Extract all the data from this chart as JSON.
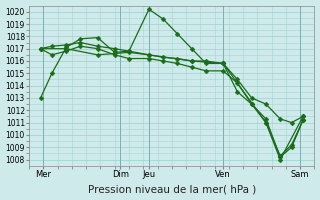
{
  "bg_color": "#ceeaea",
  "grid_color": "#a8d4d4",
  "line_color": "#1a6b1a",
  "marker": "D",
  "markersize": 2.5,
  "linewidth": 0.9,
  "xlabel": "Pression niveau de la mer( hPa )",
  "xlabel_fontsize": 7.5,
  "ylim": [
    1007.5,
    1020.5
  ],
  "yticks": [
    1008,
    1009,
    1010,
    1011,
    1012,
    1013,
    1014,
    1015,
    1016,
    1017,
    1018,
    1019,
    1020
  ],
  "ytick_fontsize": 5.5,
  "xtick_fontsize": 6.0,
  "xtick_labels": [
    "Mer",
    "Dim",
    "Jeu",
    "Ven",
    "Sam"
  ],
  "xtick_positions": [
    0.05,
    0.32,
    0.42,
    0.68,
    0.95
  ],
  "vline_positions": [
    0.05,
    0.32,
    0.42,
    0.68,
    0.95
  ],
  "series": [
    {
      "x": [
        0.04,
        0.08,
        0.13,
        0.18,
        0.24,
        0.3,
        0.35,
        0.42,
        0.47,
        0.52,
        0.57,
        0.62,
        0.68,
        0.73,
        0.78,
        0.83,
        0.88,
        0.92,
        0.96
      ],
      "y": [
        1013.0,
        1015.0,
        1017.1,
        1017.8,
        1017.9,
        1016.7,
        1016.8,
        1020.2,
        1019.4,
        1018.2,
        1017.0,
        1015.8,
        1015.8,
        1013.5,
        1012.5,
        1011.3,
        1008.2,
        1009.0,
        1011.2
      ]
    },
    {
      "x": [
        0.04,
        0.08,
        0.13,
        0.18,
        0.24,
        0.3,
        0.35,
        0.42,
        0.47,
        0.52,
        0.57,
        0.62,
        0.68,
        0.73,
        0.78,
        0.83,
        0.88,
        0.92,
        0.96
      ],
      "y": [
        1017.0,
        1017.2,
        1017.3,
        1017.5,
        1017.2,
        1017.0,
        1016.8,
        1016.5,
        1016.3,
        1016.2,
        1016.0,
        1016.0,
        1015.8,
        1014.5,
        1013.0,
        1012.5,
        1011.3,
        1011.0,
        1011.5
      ]
    },
    {
      "x": [
        0.04,
        0.08,
        0.13,
        0.18,
        0.24,
        0.3,
        0.35,
        0.42,
        0.47,
        0.52,
        0.57,
        0.62,
        0.68,
        0.73,
        0.78,
        0.83,
        0.88,
        0.92,
        0.96
      ],
      "y": [
        1017.0,
        1016.5,
        1016.8,
        1017.2,
        1017.0,
        1016.5,
        1016.2,
        1016.2,
        1016.0,
        1015.8,
        1015.5,
        1015.2,
        1015.2,
        1014.2,
        1012.5,
        1011.0,
        1008.3,
        1009.2,
        1011.2
      ]
    },
    {
      "x": [
        0.04,
        0.13,
        0.24,
        0.35,
        0.42,
        0.57,
        0.68,
        0.83,
        0.88,
        0.96
      ],
      "y": [
        1017.0,
        1017.0,
        1016.5,
        1016.7,
        1016.5,
        1016.0,
        1015.8,
        1011.0,
        1008.0,
        1011.5
      ]
    }
  ]
}
